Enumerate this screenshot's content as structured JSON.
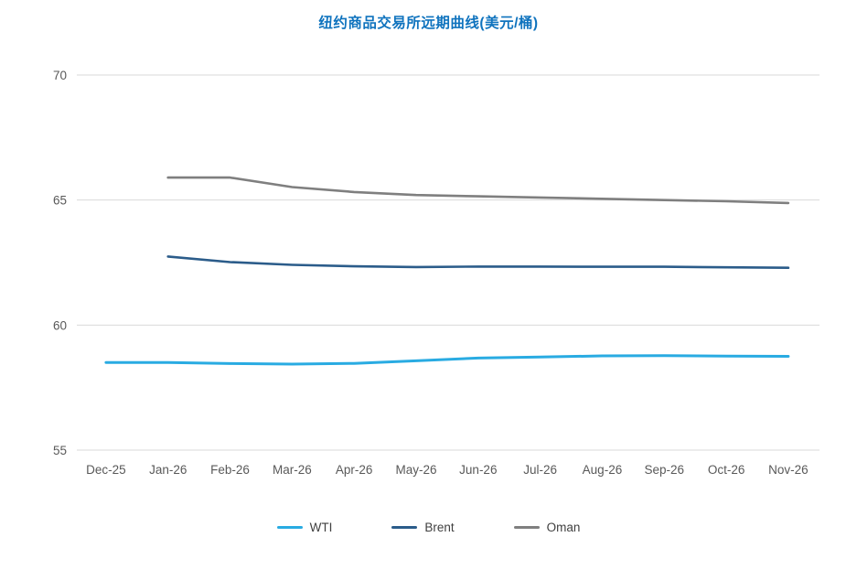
{
  "chart_data": {
    "type": "line",
    "title": "纽约商品交易所远期曲线(美元/桶)",
    "xlabel": "",
    "ylabel": "",
    "ylim": [
      55,
      70
    ],
    "yticks": [
      55,
      60,
      65,
      70
    ],
    "grid": "horizontal",
    "legend_position": "bottom",
    "categories": [
      "Dec-25",
      "Jan-26",
      "Feb-26",
      "Mar-26",
      "Apr-26",
      "May-26",
      "Jun-26",
      "Jul-26",
      "Aug-26",
      "Sep-26",
      "Oct-26",
      "Nov-26"
    ],
    "series": [
      {
        "name": "WTI",
        "color": "#29ABE2",
        "stroke_width": 3,
        "values": [
          58.5,
          58.5,
          58.46,
          58.44,
          58.47,
          58.57,
          58.68,
          58.72,
          58.77,
          58.78,
          58.76,
          58.75
        ]
      },
      {
        "name": "Brent",
        "color": "#2B5C8A",
        "stroke_width": 2.6,
        "values": [
          null,
          62.74,
          62.52,
          62.41,
          62.35,
          62.32,
          62.34,
          62.34,
          62.33,
          62.33,
          62.31,
          62.29
        ]
      },
      {
        "name": "Oman",
        "color": "#7F7F7F",
        "stroke_width": 2.6,
        "values": [
          null,
          65.9,
          65.9,
          65.52,
          65.32,
          65.2,
          65.15,
          65.1,
          65.05,
          65.0,
          64.95,
          64.88
        ]
      }
    ]
  },
  "colors": {
    "title": "#0f73be",
    "axis_text": "#595959",
    "gridline": "#d9d9d9",
    "legend_text": "#404040"
  }
}
